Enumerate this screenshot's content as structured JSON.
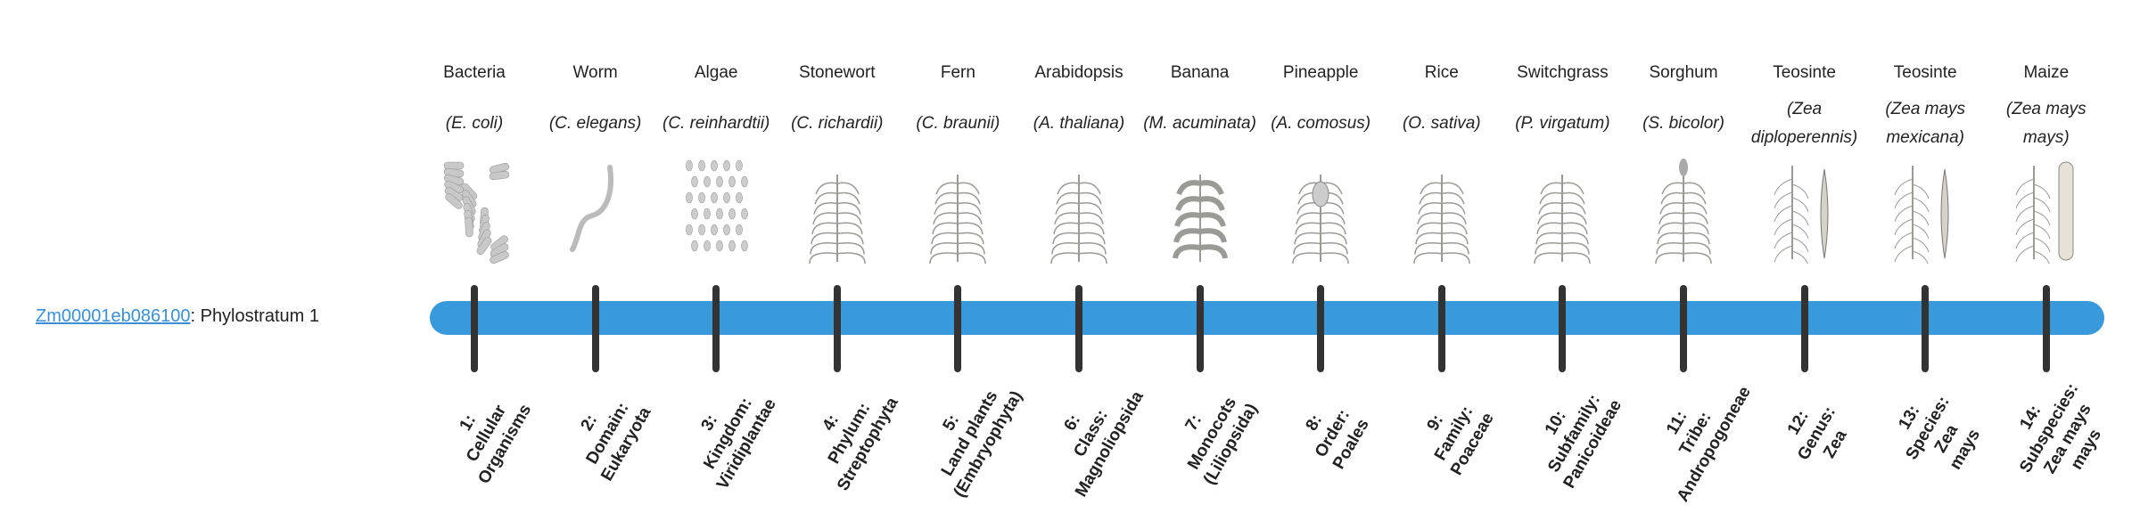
{
  "gene": {
    "id": "Zm00001eb086100",
    "suffix": ": Phylostratum 1"
  },
  "colors": {
    "bar": "#3899db",
    "tick": "#333333",
    "link": "#3a8fd8"
  },
  "taxa": [
    {
      "common": "Bacteria",
      "species": "(E. coli)",
      "icon": "bacteria-icon",
      "rank": [
        "1:",
        "Cellular",
        "Organisms"
      ]
    },
    {
      "common": "Worm",
      "species": "(C. elegans)",
      "icon": "worm-icon",
      "rank": [
        "2:",
        "Domain:",
        "Eukaryota"
      ]
    },
    {
      "common": "Algae",
      "species": "(C. reinhardtii)",
      "icon": "algae-icon",
      "rank": [
        "3:",
        "Kingdom:",
        "Viridiplantae"
      ]
    },
    {
      "common": "Stonewort",
      "species": "(C. richardii)",
      "icon": "stonewort-icon",
      "rank": [
        "4:",
        "Phylum:",
        "Streptophyta"
      ]
    },
    {
      "common": "Fern",
      "species": "(C. braunii)",
      "icon": "fern-icon",
      "rank": [
        "5:",
        "Land plants",
        "(Embryophyta)"
      ]
    },
    {
      "common": "Arabidopsis",
      "species": "(A. thaliana)",
      "icon": "arabidopsis-icon",
      "rank": [
        "6:",
        "Class:",
        "Magnoliopsida"
      ]
    },
    {
      "common": "Banana",
      "species": "(M. acuminata)",
      "icon": "banana-icon",
      "rank": [
        "7:",
        "Monocots",
        "(Liliopsida)"
      ]
    },
    {
      "common": "Pineapple",
      "species": "(A. comosus)",
      "icon": "pineapple-icon",
      "rank": [
        "8:",
        "Order:",
        "Poales"
      ]
    },
    {
      "common": "Rice",
      "species": "(O. sativa)",
      "icon": "rice-icon",
      "rank": [
        "9:",
        "Family:",
        "Poaceae"
      ]
    },
    {
      "common": "Switchgrass",
      "species": "(P. virgatum)",
      "icon": "switchgrass-icon",
      "rank": [
        "10:",
        "Subfamily:",
        "Panicoideae"
      ]
    },
    {
      "common": "Sorghum",
      "species": "(S. bicolor)",
      "icon": "sorghum-icon",
      "rank": [
        "11:",
        "Tribe:",
        "Andropogoneae"
      ]
    },
    {
      "common": "Teosinte",
      "species": "(Zea diploperennis)",
      "icon": "teosinte-icon",
      "rank": [
        "12:",
        "Genus:",
        "Zea"
      ]
    },
    {
      "common": "Teosinte",
      "species": "(Zea mays mexicana)",
      "icon": "teosinte-mexicana-icon",
      "rank": [
        "13:",
        "Species:",
        "Zea",
        "mays"
      ]
    },
    {
      "common": "Maize",
      "species": "(Zea mays mays)",
      "icon": "maize-icon",
      "rank": [
        "14:",
        "Subspecies:",
        "Zea mays",
        "mays"
      ]
    }
  ]
}
